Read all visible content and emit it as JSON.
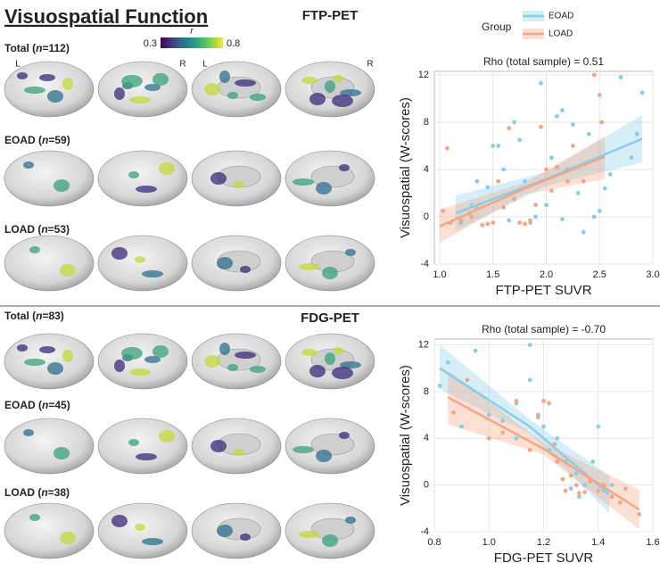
{
  "title": "Visuospatial Function",
  "colorbar": {
    "title": "r",
    "min": 0.3,
    "max": 0.8
  },
  "hemispheres": [
    "L",
    "R",
    "L",
    "R"
  ],
  "sections": [
    {
      "label": "FTP-PET",
      "groups": [
        [
          "Total (",
          "n",
          "=112)"
        ],
        [
          "EOAD (",
          "n",
          "=59)"
        ],
        [
          "LOAD (",
          "n",
          "=53)"
        ]
      ]
    },
    {
      "label": "FDG-PET",
      "groups": [
        [
          "Total (",
          "n",
          "=83)"
        ],
        [
          "EOAD (",
          "n",
          "=45)"
        ],
        [
          "LOAD (",
          "n",
          "=38)"
        ]
      ]
    }
  ],
  "chart_data": [
    {
      "type": "scatter",
      "title": "Rho (total sample) = 0.51",
      "xlabel": "FTP-PET SUVR",
      "ylabel": "Visuospatial (W-scores)",
      "legend": true,
      "legend_title": "Group",
      "grid": true,
      "xlim": [
        0.95,
        3.0
      ],
      "xticks": [
        {
          "value": 1,
          "label": "1.0"
        },
        1.5,
        {
          "value": 2,
          "label": "2.0"
        },
        2.5,
        {
          "value": 3,
          "label": "3.0"
        }
      ],
      "ylim": [
        -4,
        12.3
      ],
      "yticks": [
        -4,
        0,
        4,
        8,
        12
      ],
      "series": [
        {
          "name": "EOAD",
          "color": "#87ceeb",
          "x": [
            1.2,
            1.3,
            1.35,
            1.45,
            1.5,
            1.55,
            1.6,
            1.7,
            1.75,
            1.8,
            1.85,
            1.9,
            1.95,
            2.0,
            2.05,
            2.1,
            2.15,
            2.2,
            2.25,
            2.3,
            2.35,
            2.4,
            2.45,
            2.5,
            2.55,
            2.6,
            2.7,
            2.8,
            2.85,
            2.9,
            1.65,
            2.15
          ],
          "values": [
            -0.5,
            1,
            3,
            2.5,
            6,
            6,
            4,
            8,
            6.5,
            3,
            -0.5,
            0,
            11.3,
            1,
            5,
            8.5,
            9,
            4,
            7.8,
            2,
            -1.3,
            7,
            0,
            0.5,
            2.4,
            3.6,
            11.8,
            5,
            7,
            10.5,
            -0.3,
            -0.2
          ],
          "fit": {
            "x": [
              1.15,
              2.0,
              2.9
            ],
            "y": [
              0.3,
              3.2,
              6.6
            ],
            "lower": [
              -1.2,
              2.6,
              4.6
            ],
            "upper": [
              1.8,
              3.8,
              8.6
            ]
          }
        },
        {
          "name": "LOAD",
          "color": "#f4a582",
          "x": [
            1.03,
            1.07,
            1.1,
            1.2,
            1.3,
            1.35,
            1.4,
            1.45,
            1.5,
            1.55,
            1.6,
            1.65,
            1.7,
            1.75,
            1.8,
            1.85,
            1.9,
            1.95,
            2.0,
            2.05,
            2.1,
            2.2,
            2.25,
            2.35,
            2.45,
            2.5,
            2.52,
            1.28
          ],
          "values": [
            0.5,
            5.8,
            -0.5,
            -0.3,
            0,
            0.7,
            -0.7,
            -0.6,
            -0.5,
            3,
            0.8,
            7.5,
            1.5,
            -0.5,
            -0.6,
            -0.3,
            1,
            7.6,
            4,
            2.2,
            4.2,
            3,
            6,
            3,
            12,
            10.3,
            8,
            0.3
          ],
          "fit": {
            "x": [
              1.0,
              1.8,
              2.55
            ],
            "y": [
              -0.8,
              2.4,
              5.1
            ],
            "lower": [
              -2.2,
              1.9,
              3.2
            ],
            "upper": [
              0.6,
              2.9,
              6.8
            ]
          }
        }
      ]
    },
    {
      "type": "scatter",
      "title": "Rho (total sample) = -0.70",
      "xlabel": "FDG-PET SUVR",
      "ylabel": "Visuospatial (W-scores)",
      "legend": false,
      "grid": true,
      "xlim": [
        0.8,
        1.6
      ],
      "xticks": [
        0.8,
        {
          "value": 1,
          "label": "1.0"
        },
        1.2,
        1.4,
        1.6
      ],
      "ylim": [
        -4,
        12.5
      ],
      "yticks": [
        -4,
        0,
        4,
        8,
        12
      ],
      "series": [
        {
          "name": "EOAD",
          "color": "#87ceeb",
          "x": [
            0.82,
            0.85,
            0.95,
            0.9,
            1.0,
            1.05,
            1.1,
            1.15,
            1.18,
            1.2,
            1.22,
            1.25,
            1.28,
            1.3,
            1.32,
            1.35,
            1.38,
            1.4,
            1.42,
            1.45,
            1.15,
            1.1,
            1.33
          ],
          "values": [
            8.5,
            10.5,
            11.5,
            5,
            6,
            5.5,
            4,
            12,
            6,
            5,
            3,
            4,
            2,
            -0.3,
            1,
            0,
            2,
            5,
            -0.5,
            0,
            9,
            7,
            -1
          ],
          "fit": {
            "x": [
              0.82,
              1.15,
              1.44
            ],
            "y": [
              10,
              5,
              -0.8
            ],
            "lower": [
              8.2,
              4.4,
              -2.4
            ],
            "upper": [
              12.0,
              5.6,
              0.8
            ]
          }
        },
        {
          "name": "LOAD",
          "color": "#f4a582",
          "x": [
            0.87,
            0.92,
            1.0,
            1.05,
            1.1,
            1.15,
            1.18,
            1.2,
            1.22,
            1.25,
            1.27,
            1.28,
            1.3,
            1.32,
            1.33,
            1.35,
            1.37,
            1.4,
            1.42,
            1.45,
            1.48,
            1.5,
            1.55,
            1.24
          ],
          "values": [
            6.2,
            9,
            4,
            4.5,
            7.2,
            3,
            5.8,
            7.2,
            7,
            2,
            0.5,
            -0.5,
            0.8,
            0,
            -0.7,
            -0.6,
            0.3,
            -0.5,
            0,
            -1,
            -1.5,
            -0.3,
            -2.5,
            3.5
          ],
          "fit": {
            "x": [
              0.85,
              1.2,
              1.55
            ],
            "y": [
              7.5,
              3.1,
              -2.1
            ],
            "lower": [
              5.2,
              2.6,
              -3.8
            ],
            "upper": [
              9.8,
              3.6,
              -0.4
            ]
          }
        }
      ]
    }
  ]
}
